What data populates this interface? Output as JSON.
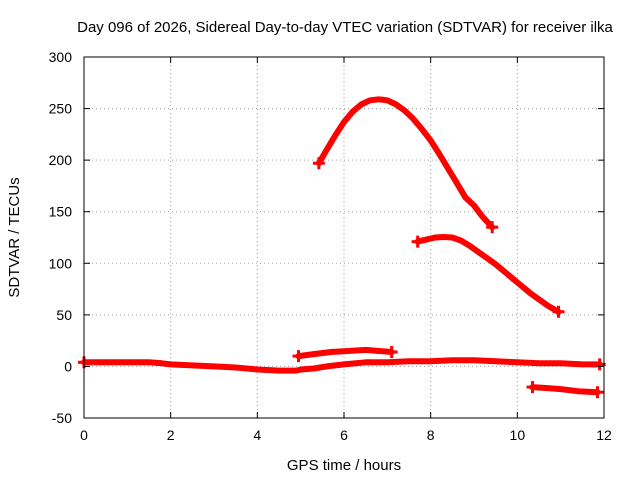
{
  "chart_data": {
    "type": "line",
    "title": "Day 096 of 2026, Sidereal Day-to-day VTEC variation (SDTVAR) for receiver ilka",
    "xlabel": "GPS time / hours",
    "ylabel": "SDTVAR / TECUs",
    "xlim": [
      0,
      12
    ],
    "ylim": [
      -50,
      300
    ],
    "xticks": [
      "0",
      "2",
      "4",
      "6",
      "8",
      "10",
      "12"
    ],
    "yticks": [
      "-50",
      "0",
      "50",
      "100",
      "150",
      "200",
      "250",
      "300"
    ],
    "grid": true,
    "legend": "none",
    "color": "#ff0000",
    "series": [
      {
        "points": [
          [
            5.42,
            197
          ],
          [
            5.6,
            210
          ],
          [
            5.8,
            224
          ],
          [
            6.0,
            237
          ],
          [
            6.2,
            247
          ],
          [
            6.4,
            254
          ],
          [
            6.6,
            258
          ],
          [
            6.8,
            259
          ],
          [
            7.0,
            258
          ],
          [
            7.2,
            254
          ],
          [
            7.4,
            248
          ],
          [
            7.6,
            240
          ],
          [
            7.8,
            230
          ],
          [
            8.0,
            219
          ],
          [
            8.2,
            206
          ],
          [
            8.4,
            192
          ],
          [
            8.6,
            178
          ],
          [
            8.8,
            164
          ],
          [
            9.0,
            156
          ],
          [
            9.2,
            145
          ],
          [
            9.42,
            135
          ]
        ]
      },
      {
        "points": [
          [
            7.7,
            121
          ],
          [
            7.9,
            123
          ],
          [
            8.1,
            125
          ],
          [
            8.3,
            125.5
          ],
          [
            8.5,
            125
          ],
          [
            8.7,
            122
          ],
          [
            8.9,
            117
          ],
          [
            9.1,
            111
          ],
          [
            9.3,
            105
          ],
          [
            9.5,
            99
          ],
          [
            9.7,
            92
          ],
          [
            9.9,
            85
          ],
          [
            10.1,
            78
          ],
          [
            10.3,
            71
          ],
          [
            10.5,
            65
          ],
          [
            10.7,
            59
          ],
          [
            10.95,
            53
          ]
        ]
      },
      {
        "points": [
          [
            0.0,
            4
          ],
          [
            0.5,
            4
          ],
          [
            1.0,
            4
          ],
          [
            1.5,
            4
          ],
          [
            1.8,
            3
          ],
          [
            2.0,
            2
          ],
          [
            2.5,
            1
          ],
          [
            3.0,
            0
          ],
          [
            3.5,
            -1
          ],
          [
            4.0,
            -3
          ],
          [
            4.5,
            -4
          ],
          [
            4.9,
            -4
          ],
          [
            5.0,
            -3
          ],
          [
            5.3,
            -2
          ],
          [
            5.6,
            0
          ],
          [
            6.0,
            2
          ],
          [
            6.5,
            4
          ],
          [
            7.0,
            4
          ],
          [
            7.5,
            5
          ],
          [
            8.0,
            5
          ],
          [
            8.5,
            6
          ],
          [
            9.0,
            6
          ],
          [
            9.5,
            5
          ],
          [
            10.0,
            4
          ],
          [
            10.5,
            3
          ],
          [
            11.0,
            3
          ],
          [
            11.5,
            2
          ],
          [
            11.9,
            2
          ]
        ]
      },
      {
        "points": [
          [
            4.95,
            10
          ],
          [
            5.3,
            12
          ],
          [
            5.7,
            14
          ],
          [
            6.1,
            15
          ],
          [
            6.5,
            16
          ],
          [
            6.8,
            15
          ],
          [
            7.1,
            14
          ]
        ]
      },
      {
        "points": [
          [
            10.35,
            -20
          ],
          [
            10.7,
            -21
          ],
          [
            11.0,
            -22
          ],
          [
            11.4,
            -24
          ],
          [
            11.85,
            -25
          ]
        ]
      }
    ]
  }
}
